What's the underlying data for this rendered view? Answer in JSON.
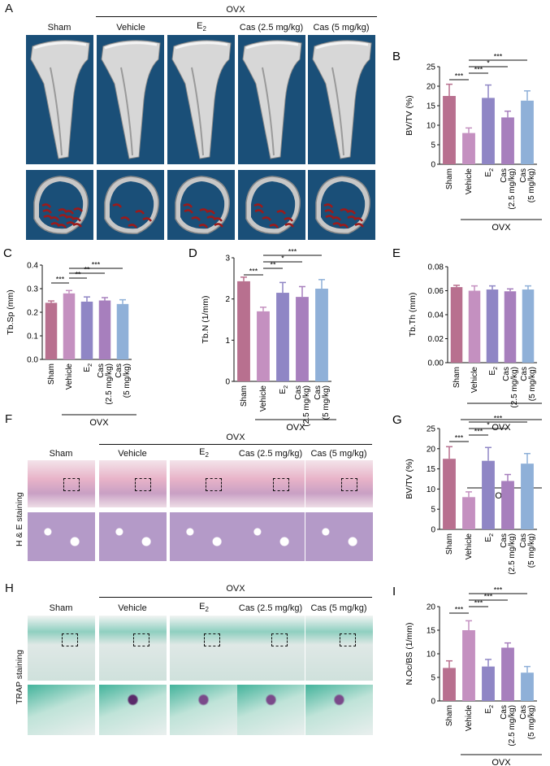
{
  "panels": {
    "A": {
      "letter": "A",
      "group_label": "OVX",
      "columns": [
        "Sham",
        "Vehicle",
        "E2",
        "Cas (2.5 mg/kg)",
        "Cas (5 mg/kg)"
      ]
    },
    "F": {
      "letter": "F",
      "group_label": "OVX",
      "side_label": "H & E staining",
      "columns": [
        "Sham",
        "Vehicle",
        "E2",
        "Cas (2.5 mg/kg)",
        "Cas (5 mg/kg)"
      ]
    },
    "H": {
      "letter": "H",
      "group_label": "OVX",
      "side_label": "TRAP staining",
      "columns": [
        "Sham",
        "Vehicle",
        "E2",
        "Cas (2.5 mg/kg)",
        "Cas (5 mg/kg)"
      ]
    }
  },
  "colors": {
    "sham": "#b8708f",
    "vehicle": "#c490c0",
    "e2": "#8f86c5",
    "cas25": "#a77fbd",
    "cas5": "#8fb0d8",
    "ct_bg": "#1a4f78",
    "he_bg": "#e9c6d6",
    "trap_bg": "#dfe8e6"
  },
  "chart_data": [
    {
      "id": "B",
      "letter": "B",
      "type": "bar",
      "ylabel": "BV/TV (%)",
      "ylim": [
        0,
        25
      ],
      "yticks": [
        "0",
        "5",
        "10",
        "15",
        "20",
        "25"
      ],
      "categories": [
        "Sham",
        "Vehicle",
        "E2",
        "Cas (2.5 mg/kg)",
        "Cas (5 mg/kg)"
      ],
      "values": [
        17.5,
        8,
        17,
        12,
        16.3
      ],
      "errors": [
        3,
        1.3,
        3.3,
        1.6,
        2.5
      ],
      "group_label": "OVX",
      "significance": [
        "***",
        "***",
        "*",
        "***"
      ]
    },
    {
      "id": "C",
      "letter": "C",
      "type": "bar",
      "ylabel": "Tb.Sp (mm)",
      "ylim": [
        0,
        0.4
      ],
      "yticks": [
        "0.0",
        "0.1",
        "0.2",
        "0.3",
        "0.4"
      ],
      "categories": [
        "Sham",
        "Vehicle",
        "E2",
        "Cas (2.5 mg/kg)",
        "Cas (5 mg/kg)"
      ],
      "values": [
        0.24,
        0.28,
        0.245,
        0.25,
        0.235
      ],
      "errors": [
        0.008,
        0.012,
        0.02,
        0.012,
        0.018
      ],
      "group_label": "OVX",
      "significance": [
        "***",
        "**",
        "**",
        "***"
      ]
    },
    {
      "id": "D",
      "letter": "D",
      "type": "bar",
      "ylabel": "Tb.N (1/mm)",
      "ylim": [
        0,
        3
      ],
      "yticks": [
        "0",
        "1",
        "2",
        "3"
      ],
      "categories": [
        "Sham",
        "Vehicle",
        "E2",
        "Cas (2.5 mg/kg)",
        "Cas (5 mg/kg)"
      ],
      "values": [
        2.43,
        1.7,
        2.15,
        2.05,
        2.25
      ],
      "errors": [
        0.1,
        0.1,
        0.25,
        0.25,
        0.22
      ],
      "group_label": "OVX",
      "significance": [
        "***",
        "**",
        "*",
        "***"
      ]
    },
    {
      "id": "E",
      "letter": "E",
      "type": "bar",
      "ylabel": "Tb.Th (mm)",
      "ylim": [
        0,
        0.08
      ],
      "yticks": [
        "0.00",
        "0.02",
        "0.04",
        "0.06",
        "0.08"
      ],
      "categories": [
        "Sham",
        "Vehicle",
        "E2",
        "Cas (2.5 mg/kg)",
        "Cas (5 mg/kg)"
      ],
      "values": [
        0.063,
        0.06,
        0.061,
        0.0595,
        0.061
      ],
      "errors": [
        0.0015,
        0.004,
        0.003,
        0.002,
        0.003
      ],
      "group_label": "OVX",
      "significance": []
    },
    {
      "id": "G",
      "letter": "G",
      "type": "bar",
      "ylabel": "BV/TV (%)",
      "ylim": [
        0,
        25
      ],
      "yticks": [
        "0",
        "5",
        "10",
        "15",
        "20",
        "25"
      ],
      "categories": [
        "Sham",
        "Vehicle",
        "E2",
        "Cas (2.5 mg/kg)",
        "Cas (5 mg/kg)"
      ],
      "values": [
        17.5,
        8,
        17,
        12,
        16.3
      ],
      "errors": [
        3,
        1.3,
        3.3,
        1.6,
        2.5
      ],
      "group_label": "OVX",
      "significance": [
        "***",
        "***",
        "*",
        "***"
      ]
    },
    {
      "id": "I",
      "letter": "I",
      "type": "bar",
      "ylabel": "N.Oc/BS (1/mm)",
      "ylim": [
        0,
        20
      ],
      "yticks": [
        "0",
        "5",
        "10",
        "15",
        "20"
      ],
      "categories": [
        "Sham",
        "Vehicle",
        "E2",
        "Cas (2.5 mg/kg)",
        "Cas (5 mg/kg)"
      ],
      "values": [
        7,
        15,
        7.3,
        11.3,
        6
      ],
      "errors": [
        1.5,
        2,
        1.5,
        1,
        1.3
      ],
      "group_label": "OVX",
      "significance": [
        "***",
        "***",
        "***",
        "***"
      ]
    }
  ]
}
